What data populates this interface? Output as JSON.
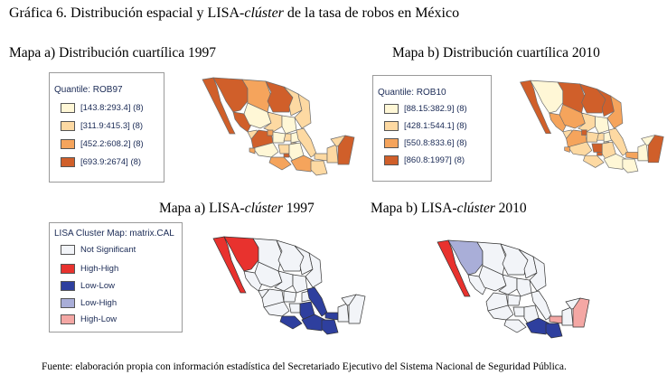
{
  "title": {
    "prefix": "Gráfica 6. Distribución espacial y LISA-",
    "italic": "clúster",
    "suffix": " de la tasa de robos en México"
  },
  "map_a_quartile": {
    "heading": "Mapa a) Distribución cuartílica 1997",
    "legend_title": "Quantile: ROB97",
    "items": [
      {
        "label": "[143.8:293.4] (8)",
        "color": "#fff7d6"
      },
      {
        "label": "[311.9:415.3] (8)",
        "color": "#fdd9a2"
      },
      {
        "label": "[452.2:608.2] (8)",
        "color": "#f5a45c"
      },
      {
        "label": "[693.9:2674] (8)",
        "color": "#d05f2a"
      }
    ]
  },
  "map_b_quartile": {
    "heading": "Mapa b) Distribución cuartílica 2010",
    "legend_title": "Quantile: ROB10",
    "items": [
      {
        "label": "[88.15:382.9] (8)",
        "color": "#fff7d6"
      },
      {
        "label": "[428.1:544.1] (8)",
        "color": "#fdd9a2"
      },
      {
        "label": "[550.8:833.6] (8)",
        "color": "#f5a45c"
      },
      {
        "label": "[860.8:1997] (8)",
        "color": "#d05f2a"
      }
    ]
  },
  "map_a_lisa": {
    "heading_prefix": "Mapa a) LISA-",
    "heading_italic": "clúster",
    "heading_suffix": " 1997"
  },
  "map_b_lisa": {
    "heading_prefix": "Mapa b) LISA-",
    "heading_italic": "clúster",
    "heading_suffix": " 2010"
  },
  "lisa_legend": {
    "title": "LISA Cluster Map: matrix.CAL",
    "items": [
      {
        "label": "Not Significant",
        "color": "#f2f4f8"
      },
      {
        "label": "High-High",
        "color": "#e8322e"
      },
      {
        "label": "Low-Low",
        "color": "#2e3f9e"
      },
      {
        "label": "Low-High",
        "color": "#a9aed8"
      },
      {
        "label": "High-Low",
        "color": "#f4a7a4"
      }
    ]
  },
  "source": "Fuente: elaboración propia con información estadística del Secretariado Ejecutivo del Sistema Nacional de Seguridad Pública."
}
